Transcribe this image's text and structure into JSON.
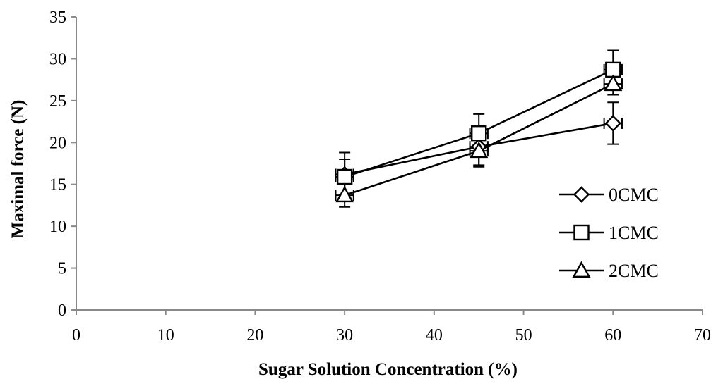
{
  "chart_data": {
    "type": "line",
    "title": "",
    "xlabel": "Sugar Solution Concentration  (%)",
    "ylabel": "Maximal force (N)",
    "xlim": [
      0,
      70
    ],
    "ylim": [
      0,
      35
    ],
    "xticks": [
      0,
      10,
      20,
      30,
      40,
      50,
      60,
      70
    ],
    "yticks": [
      0,
      5,
      10,
      15,
      20,
      25,
      30,
      35
    ],
    "grid": false,
    "legend_position": "right",
    "x": [
      30,
      45,
      60
    ],
    "series": [
      {
        "name": "0CMC",
        "marker": "diamond",
        "values": [
          16.2,
          19.5,
          22.3
        ],
        "errors": [
          2.6,
          2.2,
          2.5
        ]
      },
      {
        "name": "1CMC",
        "marker": "square",
        "values": [
          15.9,
          21.1,
          28.7
        ],
        "errors": [
          2.1,
          2.3,
          2.3
        ]
      },
      {
        "name": "2CMC",
        "marker": "triangle",
        "values": [
          13.7,
          19.0,
          27.0
        ],
        "errors": [
          1.4,
          1.9,
          1.3
        ]
      }
    ],
    "xerr": 1.0
  }
}
